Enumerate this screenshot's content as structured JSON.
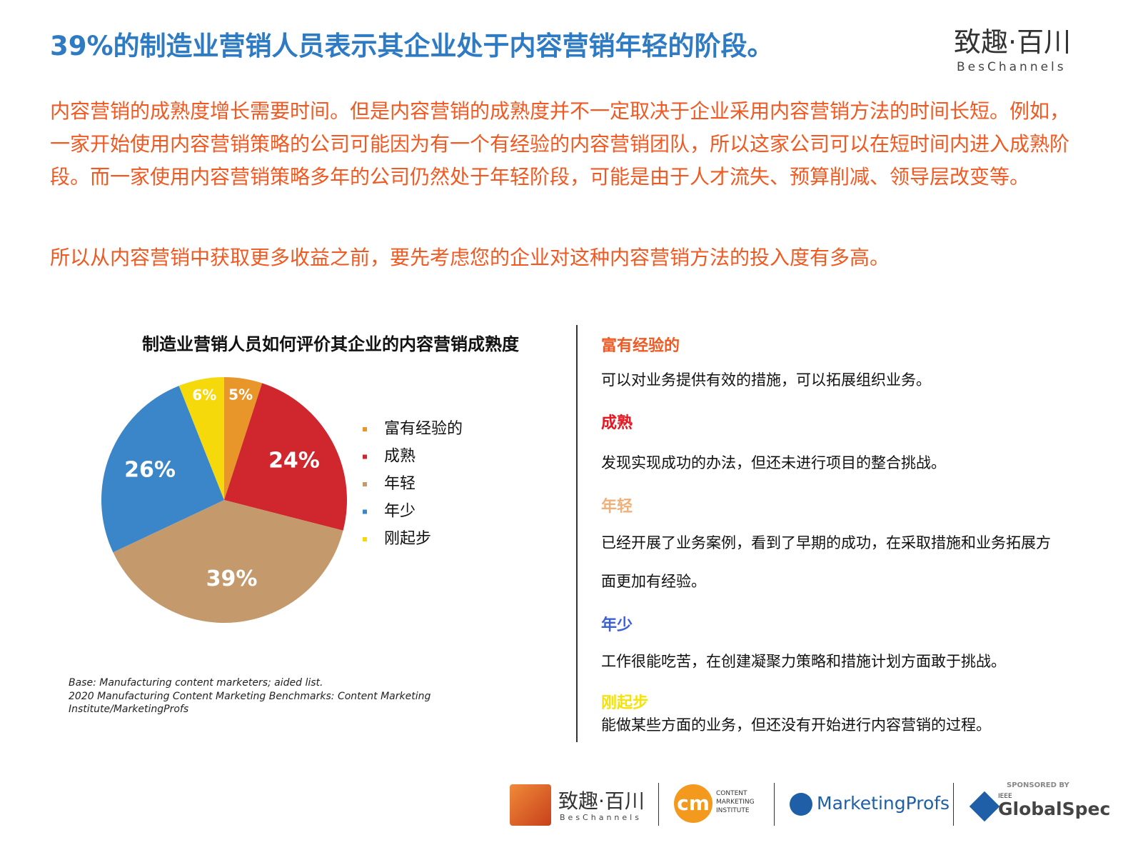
{
  "header": {
    "title": "39%的制造业营销人员表示其企业处于内容营销年轻的阶段。",
    "logo_name": "致趣·百川",
    "logo_sub": "BesChannels"
  },
  "body": {
    "paragraphs": [
      "内容营销的成熟度增长需要时间。但是内容营销的成熟度并不一定取决于企业采用内容营销方法的时间长短。例如，一家开始使用内容营销策略的公司可能因为有一个有经验的内容营销团队，所以这家公司可以在短时间内进入成熟阶段。而一家使用内容营销策略多年的公司仍然处于年轻阶段，可能是由于人才流失、预算削减、领导层改变等。",
      "所以从内容营销中获取更多收益之前，要先考虑您的企业对这种内容营销方法的投入度有多高。"
    ]
  },
  "chart_data": {
    "type": "pie",
    "title": "制造业营销人员如何评价其企业的内容营销成熟度",
    "categories": [
      "富有经验的",
      "成熟",
      "年轻",
      "年少",
      "刚起步"
    ],
    "values": [
      5,
      24,
      39,
      26,
      6
    ],
    "value_labels": [
      "5%",
      "24%",
      "39%",
      "26%",
      "6%"
    ],
    "colors": [
      "#e8962a",
      "#d0262e",
      "#c49a6c",
      "#3a86c8",
      "#f5d90a"
    ],
    "notes": [
      "Base: Manufacturing content marketers; aided list.",
      "2020 Manufacturing Content Marketing Benchmarks: Content Marketing Institute/MarketingProfs"
    ]
  },
  "definitions": [
    {
      "term": "富有经验的",
      "color": "#f05a22",
      "text": "可以对业务提供有效的措施，可以拓展组织业务。"
    },
    {
      "term": "成熟",
      "color": "#e8141e",
      "text": "发现实现成功的办法，但还未进行项目的整合挑战。"
    },
    {
      "term": "年轻",
      "color": "#f0b07a",
      "text": "已经开展了业务案例，看到了早期的成功，在采取措施和业务拓展方面更加有经验。"
    },
    {
      "term": "年少",
      "color": "#3a5fd8",
      "text": "工作很能吃苦，在创建凝聚力策略和措施计划方面敢于挑战。"
    },
    {
      "term": "刚起步",
      "color": "#f5e20a",
      "text": "能做某些方面的业务，但还没有开始进行内容营销的过程。"
    }
  ],
  "footer": {
    "logo1_name": "致趣·百川",
    "logo1_sub": "BesChannels",
    "logo2_mark": "cm",
    "logo2_text": "CONTENT MARKETING INSTITUTE",
    "logo3": "MarketingProfs",
    "sponsor": "SPONSORED BY",
    "logo4_small": "IEEE",
    "logo4": "GlobalSpec"
  }
}
